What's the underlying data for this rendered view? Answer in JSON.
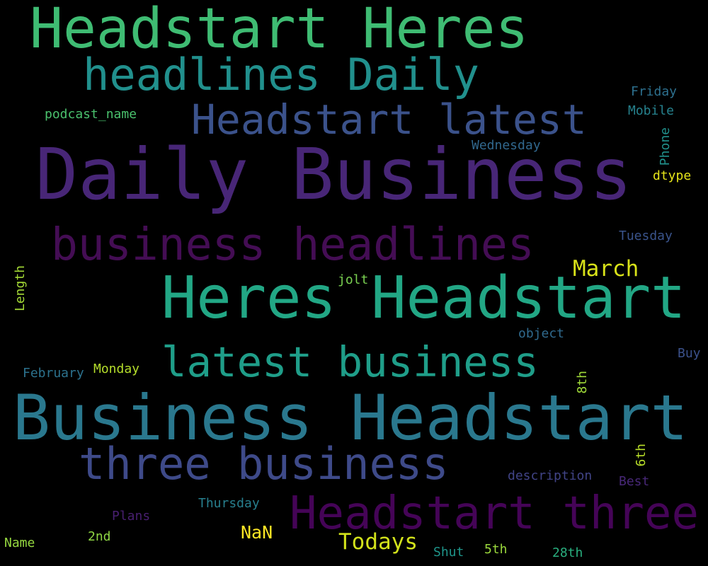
{
  "words": [
    {
      "text": "Headstart Heres",
      "color": "#3fbc73"
    },
    {
      "text": "headlines Daily",
      "color": "#21908d"
    },
    {
      "text": "Headstart latest",
      "color": "#3b528b"
    },
    {
      "text": "Daily Business",
      "color": "#482677"
    },
    {
      "text": "business headlines",
      "color": "#440d54"
    },
    {
      "text": "Heres Headstart",
      "color": "#22a785"
    },
    {
      "text": "latest business",
      "color": "#1f9e89"
    },
    {
      "text": "Business Headstart",
      "color": "#2a788e"
    },
    {
      "text": "three business",
      "color": "#3e4a89"
    },
    {
      "text": "Headstart three",
      "color": "#450457"
    },
    {
      "text": "March",
      "color": "#d8e219"
    },
    {
      "text": "Todays",
      "color": "#d2e21b"
    },
    {
      "text": "NaN",
      "color": "#fde725"
    },
    {
      "text": "podcast_name",
      "color": "#4ac16d"
    },
    {
      "text": "Friday",
      "color": "#2d708e"
    },
    {
      "text": "Mobile",
      "color": "#26828e"
    },
    {
      "text": "Phone",
      "color": "#21918c"
    },
    {
      "text": "Wednesday",
      "color": "#31688e"
    },
    {
      "text": "dtype",
      "color": "#e5e419"
    },
    {
      "text": "Tuesday",
      "color": "#3a548c"
    },
    {
      "text": "Length",
      "color": "#a5db36"
    },
    {
      "text": "jolt",
      "color": "#7ad151"
    },
    {
      "text": "object",
      "color": "#306a8e"
    },
    {
      "text": "Buy",
      "color": "#3b518b"
    },
    {
      "text": "February",
      "color": "#2c728e"
    },
    {
      "text": "Monday",
      "color": "#b5de2b"
    },
    {
      "text": "8th",
      "color": "#a0da39"
    },
    {
      "text": "6th",
      "color": "#b8de29"
    },
    {
      "text": "description",
      "color": "#414487"
    },
    {
      "text": "Best",
      "color": "#482878"
    },
    {
      "text": "Plans",
      "color": "#481f70"
    },
    {
      "text": "Thursday",
      "color": "#277f8e"
    },
    {
      "text": "Name",
      "color": "#95d840"
    },
    {
      "text": "2nd",
      "color": "#8fd744"
    },
    {
      "text": "Shut",
      "color": "#1f968b"
    },
    {
      "text": "5th",
      "color": "#9bd93c"
    },
    {
      "text": "28th",
      "color": "#29af7f"
    }
  ]
}
